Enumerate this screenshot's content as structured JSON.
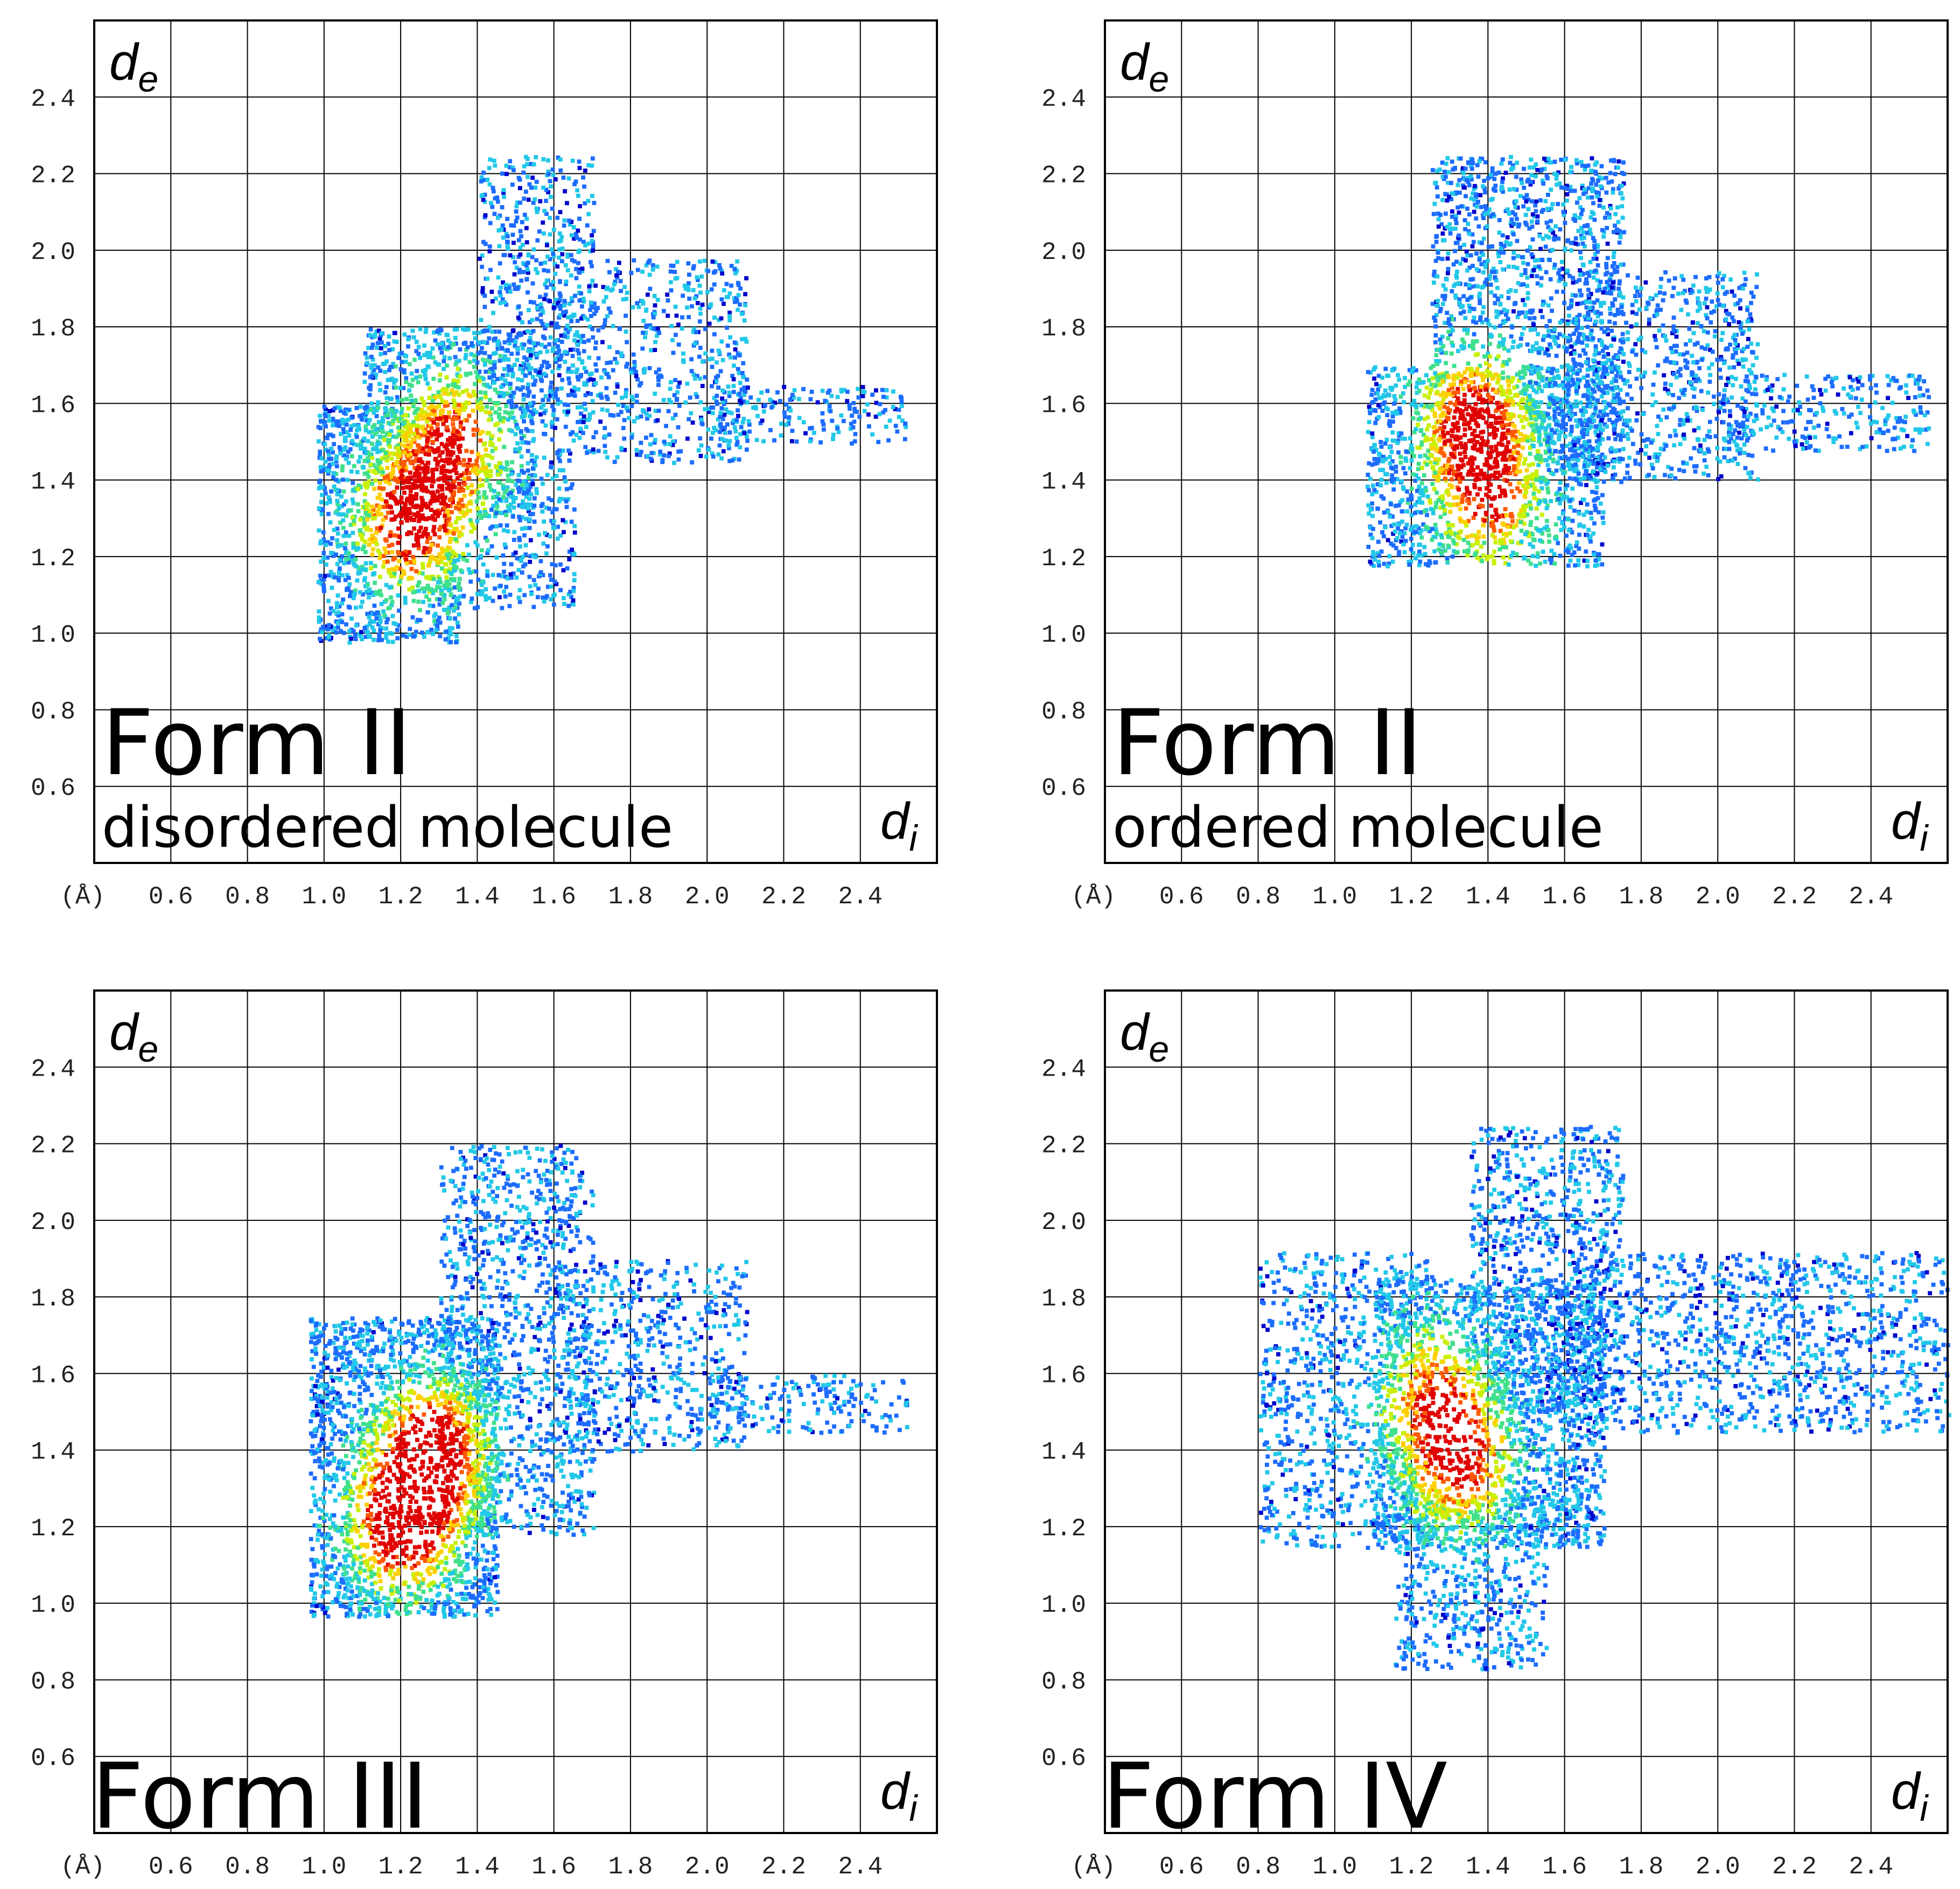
{
  "chart_data": [
    {
      "type": "heatmap",
      "title": "Form II",
      "subtitle": "disordered molecule",
      "ylabel": "d",
      "ylabel_sub": "e",
      "xlabel": "d",
      "xlabel_sub": "i",
      "unit_label": "(Å)",
      "xlim": [
        0.4,
        2.6
      ],
      "ylim": [
        0.4,
        2.6
      ],
      "x_ticks": [
        "0.6",
        "0.8",
        "1.0",
        "1.2",
        "1.4",
        "1.6",
        "1.8",
        "2.0",
        "2.2",
        "2.4"
      ],
      "y_ticks": [
        "0.6",
        "0.8",
        "1.0",
        "1.2",
        "1.4",
        "1.6",
        "1.8",
        "2.0",
        "2.2",
        "2.4"
      ],
      "grid": true,
      "colormap": [
        "#0000cc",
        "#1c6cff",
        "#22c8e8",
        "#3fe08c",
        "#c8f000",
        "#ffd000",
        "#ff5a00",
        "#e00000"
      ],
      "regions": [
        {
          "x": [
            0.98,
            1.35
          ],
          "y": [
            0.98,
            1.6
          ],
          "density": 0.65
        },
        {
          "x": [
            1.1,
            1.55
          ],
          "y": [
            1.3,
            1.8
          ],
          "density": 0.55
        },
        {
          "x": [
            1.3,
            1.65
          ],
          "y": [
            1.07,
            1.45
          ],
          "density": 0.35
        },
        {
          "x": [
            1.4,
            1.7
          ],
          "y": [
            1.55,
            2.25
          ],
          "density": 0.3
        },
        {
          "x": [
            1.55,
            2.1
          ],
          "y": [
            1.45,
            1.98
          ],
          "density": 0.28
        },
        {
          "x": [
            2.0,
            2.52
          ],
          "y": [
            1.5,
            1.65
          ],
          "density": 0.3
        }
      ],
      "hotspots": [
        {
          "x": 1.22,
          "y": 1.3,
          "peak": 0.85
        },
        {
          "x": 1.33,
          "y": 1.5,
          "peak": 0.7
        }
      ]
    },
    {
      "type": "heatmap",
      "title": "Form II",
      "subtitle": "ordered molecule",
      "ylabel": "d",
      "ylabel_sub": "e",
      "xlabel": "d",
      "xlabel_sub": "i",
      "unit_label": "(Å)",
      "xlim": [
        0.4,
        2.6
      ],
      "ylim": [
        0.4,
        2.6
      ],
      "x_ticks": [
        "0.6",
        "0.8",
        "1.0",
        "1.2",
        "1.4",
        "1.6",
        "1.8",
        "2.0",
        "2.2",
        "2.4"
      ],
      "y_ticks": [
        "0.6",
        "0.8",
        "1.0",
        "1.2",
        "1.4",
        "1.6",
        "1.8",
        "2.0",
        "2.2",
        "2.4"
      ],
      "grid": true,
      "colormap": [
        "#0000cc",
        "#1c6cff",
        "#22c8e8",
        "#3fe08c",
        "#c8f000",
        "#ffd000",
        "#ff5a00",
        "#e00000"
      ],
      "regions": [
        {
          "x": [
            1.08,
            1.7
          ],
          "y": [
            1.18,
            1.7
          ],
          "density": 0.55
        },
        {
          "x": [
            1.25,
            1.75
          ],
          "y": [
            1.4,
            2.25
          ],
          "density": 0.45
        },
        {
          "x": [
            1.6,
            2.1
          ],
          "y": [
            1.4,
            1.95
          ],
          "density": 0.32
        },
        {
          "x": [
            2.0,
            2.55
          ],
          "y": [
            1.48,
            1.68
          ],
          "density": 0.3
        }
      ],
      "hotspots": [
        {
          "x": 1.36,
          "y": 1.55,
          "peak": 0.85
        },
        {
          "x": 1.4,
          "y": 1.35,
          "peak": 0.6
        }
      ]
    },
    {
      "type": "heatmap",
      "title": "Form III",
      "subtitle": "",
      "ylabel": "d",
      "ylabel_sub": "e",
      "xlabel": "d",
      "xlabel_sub": "i",
      "unit_label": "(Å)",
      "xlim": [
        0.4,
        2.6
      ],
      "ylim": [
        0.4,
        2.6
      ],
      "x_ticks": [
        "0.6",
        "0.8",
        "1.0",
        "1.2",
        "1.4",
        "1.6",
        "1.8",
        "2.0",
        "2.2",
        "2.4"
      ],
      "y_ticks": [
        "0.6",
        "0.8",
        "1.0",
        "1.2",
        "1.4",
        "1.6",
        "1.8",
        "2.0",
        "2.2",
        "2.4"
      ],
      "grid": true,
      "colormap": [
        "#0000cc",
        "#1c6cff",
        "#22c8e8",
        "#3fe08c",
        "#c8f000",
        "#ffd000",
        "#ff5a00",
        "#e00000"
      ],
      "regions": [
        {
          "x": [
            0.96,
            1.45
          ],
          "y": [
            0.97,
            1.75
          ],
          "density": 0.7
        },
        {
          "x": [
            1.3,
            1.7
          ],
          "y": [
            1.18,
            2.2
          ],
          "density": 0.35
        },
        {
          "x": [
            1.6,
            2.1
          ],
          "y": [
            1.4,
            1.9
          ],
          "density": 0.28
        },
        {
          "x": [
            2.0,
            2.52
          ],
          "y": [
            1.45,
            1.6
          ],
          "density": 0.3
        }
      ],
      "hotspots": [
        {
          "x": 1.2,
          "y": 1.22,
          "peak": 1.0
        },
        {
          "x": 1.28,
          "y": 1.4,
          "peak": 0.95
        }
      ]
    },
    {
      "type": "heatmap",
      "title": "Form IV",
      "subtitle": "",
      "ylabel": "d",
      "ylabel_sub": "e",
      "xlabel": "d",
      "xlabel_sub": "i",
      "unit_label": "(Å)",
      "xlim": [
        0.4,
        2.6
      ],
      "ylim": [
        0.4,
        2.6
      ],
      "x_ticks": [
        "0.6",
        "0.8",
        "1.0",
        "1.2",
        "1.4",
        "1.6",
        "1.8",
        "2.0",
        "2.2",
        "2.4"
      ],
      "y_ticks": [
        "0.6",
        "0.8",
        "1.0",
        "1.2",
        "1.4",
        "1.6",
        "1.8",
        "2.0",
        "2.2",
        "2.4"
      ],
      "grid": true,
      "colormap": [
        "#0000cc",
        "#1c6cff",
        "#22c8e8",
        "#3fe08c",
        "#c8f000",
        "#ffd000",
        "#ff5a00",
        "#e00000"
      ],
      "regions": [
        {
          "x": [
            0.8,
            1.25
          ],
          "y": [
            1.15,
            1.92
          ],
          "density": 0.3
        },
        {
          "x": [
            1.1,
            1.7
          ],
          "y": [
            1.15,
            1.85
          ],
          "density": 0.55
        },
        {
          "x": [
            1.15,
            1.55
          ],
          "y": [
            0.83,
            1.3
          ],
          "density": 0.35
        },
        {
          "x": [
            1.35,
            1.75
          ],
          "y": [
            1.5,
            2.25
          ],
          "density": 0.35
        },
        {
          "x": [
            1.6,
            2.6
          ],
          "y": [
            1.45,
            1.92
          ],
          "density": 0.3
        }
      ],
      "hotspots": [
        {
          "x": 1.32,
          "y": 1.38,
          "peak": 0.75
        },
        {
          "x": 1.25,
          "y": 1.55,
          "peak": 0.55
        }
      ]
    }
  ]
}
